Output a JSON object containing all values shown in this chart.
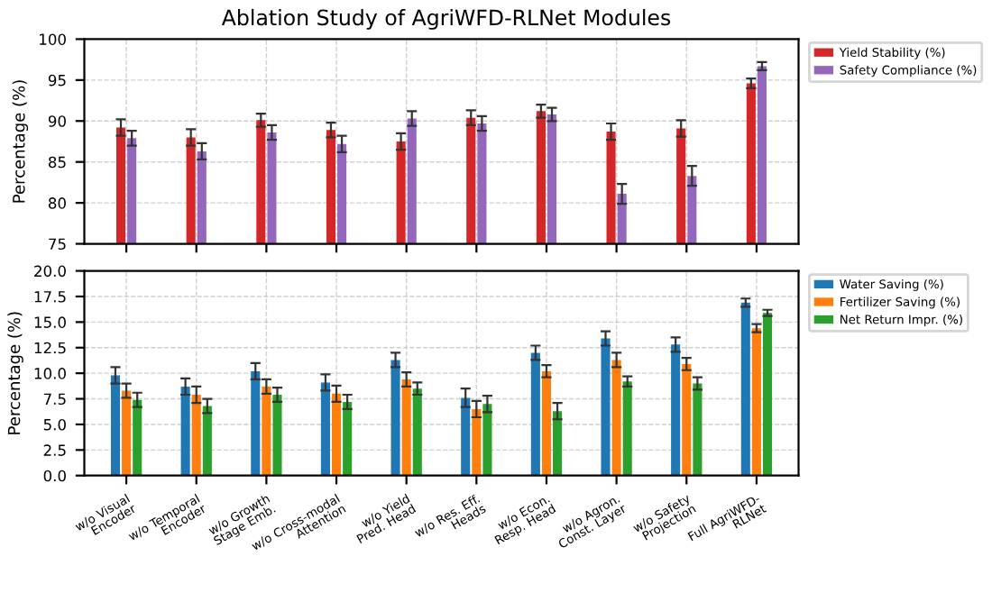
{
  "chart_data": [
    {
      "type": "bar",
      "title": "Ablation Study of AgriWFD-RLNet Modules",
      "ylabel": "Percentage (%)",
      "categories": [
        null,
        null,
        null,
        null,
        null,
        null,
        null,
        null,
        null,
        null
      ],
      "series": [
        {
          "name": "Yield Stability (%)",
          "color": "#d62728",
          "values": [
            89.2,
            88.0,
            90.1,
            88.9,
            87.5,
            90.4,
            91.2,
            88.7,
            89.1,
            94.6
          ],
          "errors": [
            1.0,
            1.0,
            0.8,
            0.9,
            1.0,
            0.9,
            0.8,
            1.0,
            1.0,
            0.6
          ]
        },
        {
          "name": "Safety Compliance (%)",
          "color": "#9467bd",
          "values": [
            87.9,
            86.3,
            88.6,
            87.2,
            90.3,
            89.7,
            90.8,
            81.1,
            83.3,
            96.7
          ],
          "errors": [
            0.9,
            1.0,
            0.9,
            1.0,
            0.9,
            0.9,
            0.8,
            1.2,
            1.2,
            0.5
          ]
        }
      ],
      "ylim": [
        75,
        100
      ],
      "yticks": [
        75,
        80,
        85,
        90,
        95,
        100
      ],
      "grid": true,
      "legend": "top right",
      "tick_labels": "y"
    },
    {
      "type": "bar",
      "ylabel": "Percentage (%)",
      "categories": [
        "w/o Visual\nEncoder",
        "w/o Temporal\nEncoder",
        "w/o Growth\nStage Emb.",
        "w/o Cross-modal\nAttention",
        "w/o Yield\nPred. Head",
        "w/o Res. Eff.\nHeads",
        "w/o Econ.\nResp. Head",
        "w/o Agron.\nConst. Layer",
        "w/o Safety\nProjection",
        "Full AgriWFD-\nRLNet"
      ],
      "series": [
        {
          "name": "Water Saving (%)",
          "color": "#1f77b4",
          "values": [
            9.8,
            8.7,
            10.2,
            9.1,
            11.3,
            7.6,
            12.0,
            13.4,
            12.8,
            16.9
          ],
          "errors": [
            0.8,
            0.8,
            0.8,
            0.8,
            0.7,
            0.9,
            0.7,
            0.7,
            0.7,
            0.4
          ]
        },
        {
          "name": "Fertilizer Saving (%)",
          "color": "#ff7f0e",
          "values": [
            8.3,
            7.9,
            8.7,
            8.0,
            9.4,
            6.5,
            10.2,
            11.3,
            10.9,
            14.4
          ],
          "errors": [
            0.7,
            0.8,
            0.7,
            0.8,
            0.7,
            0.8,
            0.6,
            0.7,
            0.6,
            0.4
          ]
        },
        {
          "name": "Net Return Impr. (%)",
          "color": "#2ca02c",
          "values": [
            7.4,
            6.8,
            7.9,
            7.2,
            8.5,
            7.0,
            6.3,
            9.2,
            9.0,
            15.9
          ],
          "errors": [
            0.7,
            0.7,
            0.7,
            0.7,
            0.6,
            0.8,
            0.8,
            0.5,
            0.6,
            0.3
          ]
        }
      ],
      "ylim": [
        0,
        20
      ],
      "yticks": [
        {
          "value": 0,
          "label": "0.0"
        },
        {
          "value": 2.5,
          "label": "2.5"
        },
        {
          "value": 5,
          "label": "5.0"
        },
        {
          "value": 7.5,
          "label": "7.5"
        },
        {
          "value": 10,
          "label": "10.0"
        },
        {
          "value": 12.5,
          "label": "12.5"
        },
        {
          "value": 15,
          "label": "15.0"
        },
        {
          "value": 17.5,
          "label": "17.5"
        },
        {
          "value": 20,
          "label": "20.0"
        }
      ],
      "grid": true,
      "legend": "top right"
    }
  ]
}
